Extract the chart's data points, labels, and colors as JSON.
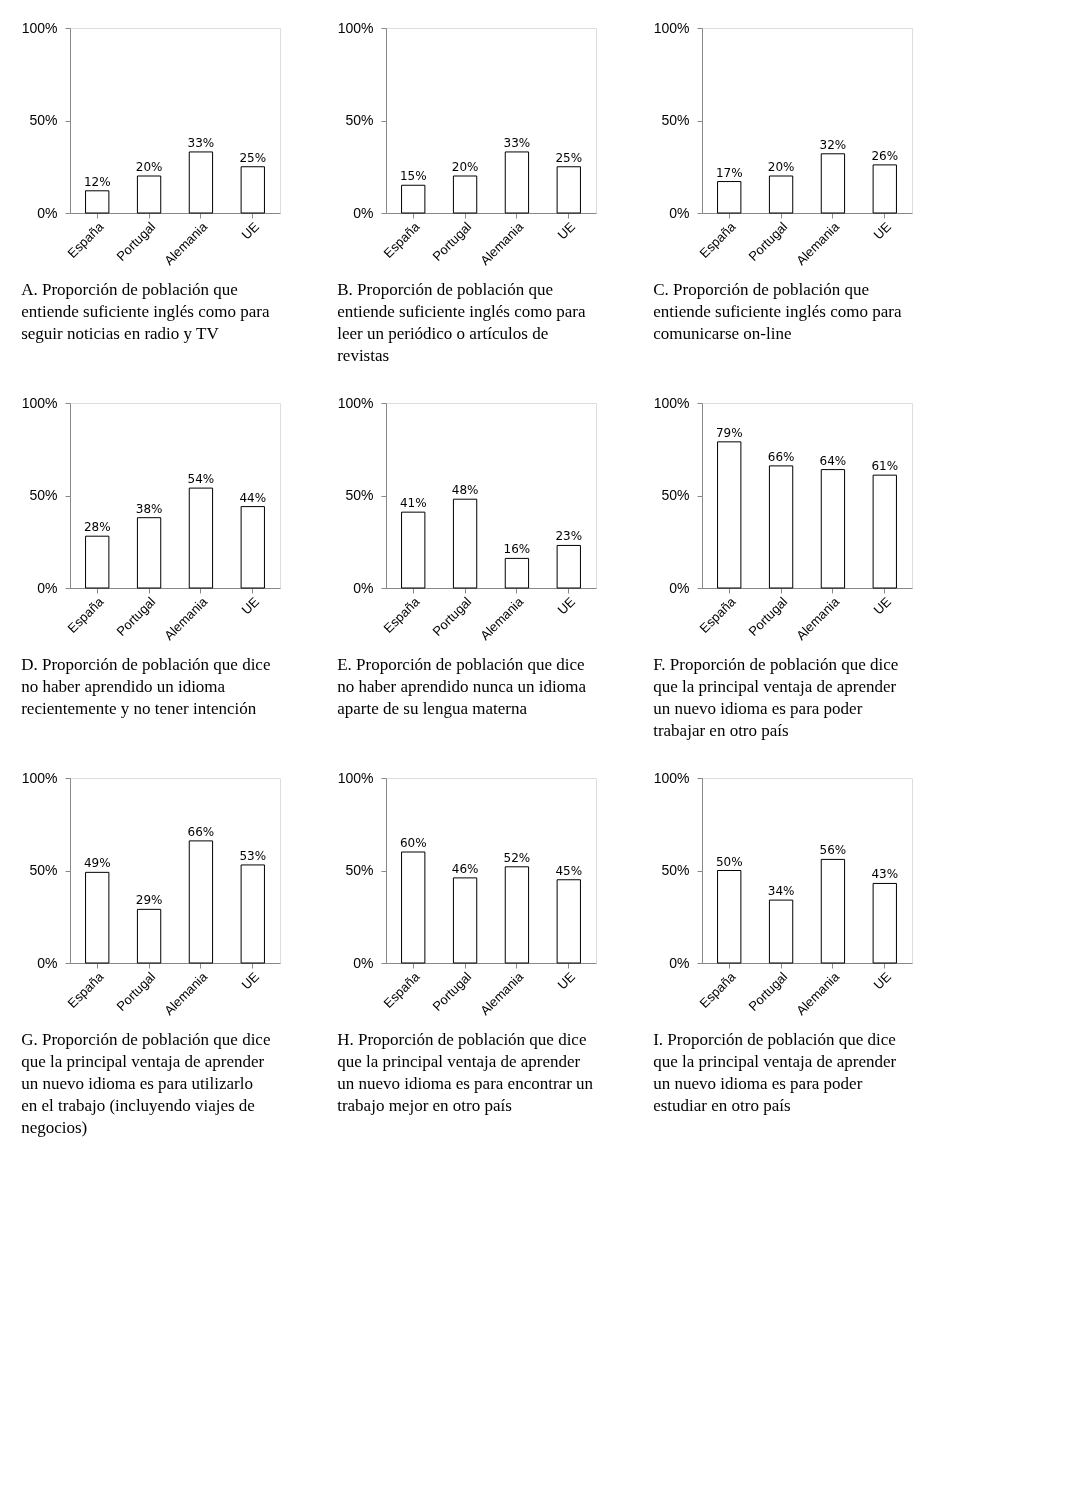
{
  "chart_data": [
    {
      "type": "bar",
      "categories": [
        "España",
        "Portugal",
        "Alemania",
        "UE"
      ],
      "values": [
        12,
        20,
        33,
        25
      ],
      "value_labels": [
        "12%",
        "20%",
        "33%",
        "25%"
      ],
      "ylim": [
        0,
        100
      ],
      "yticks": [
        {
          "value": 0,
          "label": "0%"
        },
        {
          "value": 50,
          "label": "50%"
        },
        {
          "value": 100,
          "label": "100%"
        }
      ],
      "color": "#ffffff",
      "annotations": [
        "A. Proporción de población que entiende suficiente inglés como para seguir noticias en radio y TV"
      ]
    },
    {
      "type": "bar",
      "categories": [
        "España",
        "Portugal",
        "Alemania",
        "UE"
      ],
      "values": [
        15,
        20,
        33,
        25
      ],
      "value_labels": [
        "15%",
        "20%",
        "33%",
        "25%"
      ],
      "ylim": [
        0,
        100
      ],
      "yticks": [
        {
          "value": 0,
          "label": "0%"
        },
        {
          "value": 50,
          "label": "50%"
        },
        {
          "value": 100,
          "label": "100%"
        }
      ],
      "color": "#ffffff",
      "annotations": [
        "B. Proporción de población que entiende suficiente inglés como para leer un periódico o artículos de revistas"
      ]
    },
    {
      "type": "bar",
      "categories": [
        "España",
        "Portugal",
        "Alemania",
        "UE"
      ],
      "values": [
        17,
        20,
        32,
        26
      ],
      "value_labels": [
        "17%",
        "20%",
        "32%",
        "26%"
      ],
      "ylim": [
        0,
        100
      ],
      "yticks": [
        {
          "value": 0,
          "label": "0%"
        },
        {
          "value": 50,
          "label": "50%"
        },
        {
          "value": 100,
          "label": "100%"
        }
      ],
      "color": "#ffffff",
      "annotations": [
        "C. Proporción de población que entiende suficiente inglés como para comunicarse on-line"
      ]
    },
    {
      "type": "bar",
      "categories": [
        "España",
        "Portugal",
        "Alemania",
        "UE"
      ],
      "values": [
        28,
        38,
        54,
        44
      ],
      "value_labels": [
        "28%",
        "38%",
        "54%",
        "44%"
      ],
      "ylim": [
        0,
        100
      ],
      "yticks": [
        {
          "value": 0,
          "label": "0%"
        },
        {
          "value": 50,
          "label": "50%"
        },
        {
          "value": 100,
          "label": "100%"
        }
      ],
      "color": "#ffffff",
      "annotations": [
        "D. Proporción de población que dice no haber aprendido un idioma recientemente y no tener intención"
      ]
    },
    {
      "type": "bar",
      "categories": [
        "España",
        "Portugal",
        "Alemania",
        "UE"
      ],
      "values": [
        41,
        48,
        16,
        23
      ],
      "value_labels": [
        "41%",
        "48%",
        "16%",
        "23%"
      ],
      "ylim": [
        0,
        100
      ],
      "yticks": [
        {
          "value": 0,
          "label": "0%"
        },
        {
          "value": 50,
          "label": "50%"
        },
        {
          "value": 100,
          "label": "100%"
        }
      ],
      "color": "#ffffff",
      "annotations": [
        "E. Proporción de población que dice no haber aprendido nunca un idioma aparte de su lengua materna"
      ]
    },
    {
      "type": "bar",
      "categories": [
        "España",
        "Portugal",
        "Alemania",
        "UE"
      ],
      "values": [
        79,
        66,
        64,
        61
      ],
      "value_labels": [
        "79%",
        "66%",
        "64%",
        "61%"
      ],
      "ylim": [
        0,
        100
      ],
      "yticks": [
        {
          "value": 0,
          "label": "0%"
        },
        {
          "value": 50,
          "label": "50%"
        },
        {
          "value": 100,
          "label": "100%"
        }
      ],
      "color": "#ffffff",
      "annotations": [
        "F. Proporción de población que dice que la principal ventaja de aprender un nuevo idioma es para poder trabajar en otro país"
      ]
    },
    {
      "type": "bar",
      "categories": [
        "España",
        "Portugal",
        "Alemania",
        "UE"
      ],
      "values": [
        49,
        29,
        66,
        53
      ],
      "value_labels": [
        "49%",
        "29%",
        "66%",
        "53%"
      ],
      "ylim": [
        0,
        100
      ],
      "yticks": [
        {
          "value": 0,
          "label": "0%"
        },
        {
          "value": 50,
          "label": "50%"
        },
        {
          "value": 100,
          "label": "100%"
        }
      ],
      "color": "#ffffff",
      "annotations": [
        "G. Proporción de población que dice que la principal ventaja de aprender un nuevo idioma es para utilizarlo en el trabajo (incluyendo viajes de negocios)"
      ]
    },
    {
      "type": "bar",
      "categories": [
        "España",
        "Portugal",
        "Alemania",
        "UE"
      ],
      "values": [
        60,
        46,
        52,
        45
      ],
      "value_labels": [
        "60%",
        "46%",
        "52%",
        "45%"
      ],
      "ylim": [
        0,
        100
      ],
      "yticks": [
        {
          "value": 0,
          "label": "0%"
        },
        {
          "value": 50,
          "label": "50%"
        },
        {
          "value": 100,
          "label": "100%"
        }
      ],
      "color": "#ffffff",
      "annotations": [
        "H. Proporción de población que dice que la principal ventaja de aprender un nuevo idioma es para encontrar un trabajo mejor en otro país"
      ]
    },
    {
      "type": "bar",
      "categories": [
        "España",
        "Portugal",
        "Alemania",
        "UE"
      ],
      "values": [
        50,
        34,
        56,
        43
      ],
      "value_labels": [
        "50%",
        "34%",
        "56%",
        "43%"
      ],
      "ylim": [
        0,
        100
      ],
      "yticks": [
        {
          "value": 0,
          "label": "0%"
        },
        {
          "value": 50,
          "label": "50%"
        },
        {
          "value": 100,
          "label": "100%"
        }
      ],
      "color": "#ffffff",
      "annotations": [
        "I. Proporción de población que dice que la principal ventaja de aprender un nuevo idioma es para poder estudiar en otro país"
      ]
    }
  ]
}
